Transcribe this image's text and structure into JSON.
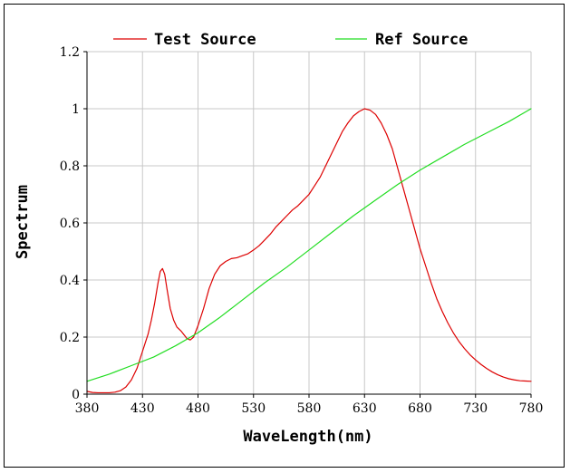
{
  "chart_data": {
    "type": "line",
    "title": "",
    "xlabel": "WaveLength(nm)",
    "ylabel": "Spectrum",
    "xlim": [
      380,
      780
    ],
    "ylim": [
      0,
      1.2
    ],
    "x_ticks": [
      380,
      430,
      480,
      530,
      580,
      630,
      680,
      730,
      780
    ],
    "x_tick_labels": [
      "380",
      "430",
      "480",
      "530",
      "580",
      "630",
      "680",
      "730",
      "780"
    ],
    "y_ticks": [
      0,
      0.2,
      0.4,
      0.6,
      0.8,
      1,
      1.2
    ],
    "y_tick_labels": [
      "0",
      "0.2",
      "0.4",
      "0.6",
      "0.8",
      "1",
      "1.2"
    ],
    "grid": true,
    "legend_position": "top",
    "series": [
      {
        "name": "Test Source",
        "color": "#dd0000",
        "points": [
          [
            380,
            0.01
          ],
          [
            385,
            0.006
          ],
          [
            390,
            0.005
          ],
          [
            395,
            0.005
          ],
          [
            400,
            0.005
          ],
          [
            405,
            0.007
          ],
          [
            410,
            0.012
          ],
          [
            415,
            0.025
          ],
          [
            420,
            0.05
          ],
          [
            425,
            0.09
          ],
          [
            430,
            0.15
          ],
          [
            435,
            0.21
          ],
          [
            438,
            0.26
          ],
          [
            441,
            0.32
          ],
          [
            444,
            0.39
          ],
          [
            446,
            0.43
          ],
          [
            448,
            0.44
          ],
          [
            450,
            0.42
          ],
          [
            452,
            0.37
          ],
          [
            455,
            0.3
          ],
          [
            458,
            0.26
          ],
          [
            461,
            0.235
          ],
          [
            465,
            0.22
          ],
          [
            468,
            0.205
          ],
          [
            470,
            0.195
          ],
          [
            473,
            0.19
          ],
          [
            476,
            0.2
          ],
          [
            480,
            0.24
          ],
          [
            485,
            0.3
          ],
          [
            490,
            0.37
          ],
          [
            495,
            0.42
          ],
          [
            500,
            0.45
          ],
          [
            505,
            0.465
          ],
          [
            510,
            0.475
          ],
          [
            515,
            0.478
          ],
          [
            520,
            0.485
          ],
          [
            525,
            0.492
          ],
          [
            530,
            0.505
          ],
          [
            535,
            0.52
          ],
          [
            540,
            0.54
          ],
          [
            545,
            0.56
          ],
          [
            550,
            0.585
          ],
          [
            555,
            0.605
          ],
          [
            560,
            0.625
          ],
          [
            565,
            0.645
          ],
          [
            570,
            0.66
          ],
          [
            575,
            0.68
          ],
          [
            580,
            0.7
          ],
          [
            585,
            0.73
          ],
          [
            590,
            0.76
          ],
          [
            595,
            0.8
          ],
          [
            600,
            0.84
          ],
          [
            605,
            0.88
          ],
          [
            610,
            0.92
          ],
          [
            615,
            0.95
          ],
          [
            620,
            0.975
          ],
          [
            625,
            0.99
          ],
          [
            630,
            1.0
          ],
          [
            635,
            0.995
          ],
          [
            640,
            0.98
          ],
          [
            645,
            0.95
          ],
          [
            650,
            0.91
          ],
          [
            655,
            0.86
          ],
          [
            660,
            0.79
          ],
          [
            665,
            0.72
          ],
          [
            670,
            0.65
          ],
          [
            675,
            0.58
          ],
          [
            680,
            0.51
          ],
          [
            685,
            0.45
          ],
          [
            690,
            0.39
          ],
          [
            695,
            0.335
          ],
          [
            700,
            0.29
          ],
          [
            705,
            0.25
          ],
          [
            710,
            0.215
          ],
          [
            715,
            0.185
          ],
          [
            720,
            0.16
          ],
          [
            725,
            0.138
          ],
          [
            730,
            0.12
          ],
          [
            735,
            0.104
          ],
          [
            740,
            0.09
          ],
          [
            745,
            0.078
          ],
          [
            750,
            0.068
          ],
          [
            755,
            0.06
          ],
          [
            760,
            0.054
          ],
          [
            765,
            0.05
          ],
          [
            770,
            0.047
          ],
          [
            775,
            0.046
          ],
          [
            780,
            0.045
          ]
        ]
      },
      {
        "name": "Ref Source",
        "color": "#22dd22",
        "points": [
          [
            380,
            0.045
          ],
          [
            400,
            0.07
          ],
          [
            420,
            0.1
          ],
          [
            440,
            0.13
          ],
          [
            460,
            0.17
          ],
          [
            480,
            0.215
          ],
          [
            500,
            0.27
          ],
          [
            520,
            0.33
          ],
          [
            540,
            0.39
          ],
          [
            560,
            0.445
          ],
          [
            580,
            0.505
          ],
          [
            600,
            0.565
          ],
          [
            620,
            0.625
          ],
          [
            640,
            0.68
          ],
          [
            660,
            0.735
          ],
          [
            680,
            0.785
          ],
          [
            700,
            0.83
          ],
          [
            720,
            0.875
          ],
          [
            740,
            0.915
          ],
          [
            760,
            0.955
          ],
          [
            780,
            1.0
          ]
        ]
      }
    ]
  }
}
